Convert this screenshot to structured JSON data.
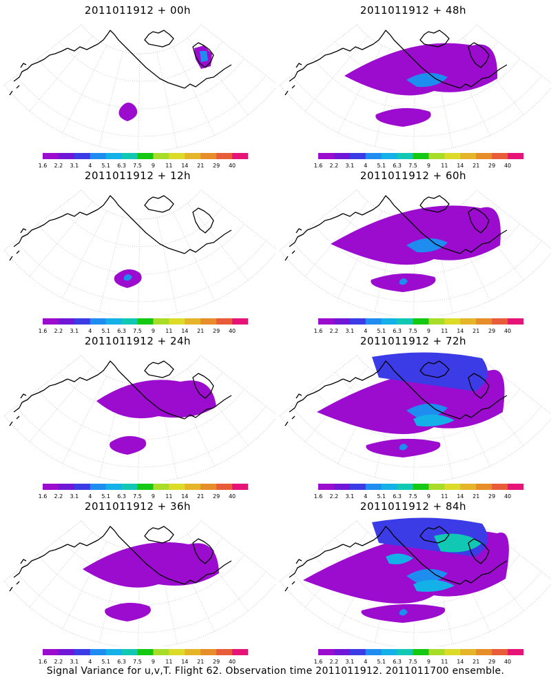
{
  "panels": [
    {
      "title": "2011011912 + 00h",
      "level": 0
    },
    {
      "title": "2011011912 + 48h",
      "level": 4
    },
    {
      "title": "2011011912 + 12h",
      "level": 1
    },
    {
      "title": "2011011912 + 60h",
      "level": 5
    },
    {
      "title": "2011011912 + 24h",
      "level": 2
    },
    {
      "title": "2011011912 + 72h",
      "level": 6
    },
    {
      "title": "2011011912 + 36h",
      "level": 3
    },
    {
      "title": "2011011912 + 84h",
      "level": 7
    }
  ],
  "colorbar": {
    "labels": [
      "1.6",
      "2.2",
      "3.1",
      "4",
      "5.1",
      "6.3",
      "7.5",
      "9",
      "11",
      "14",
      "21",
      "29",
      "40"
    ],
    "colors": [
      "#9b0ccf",
      "#7016d6",
      "#3c3ce6",
      "#1f8cf0",
      "#14b0e8",
      "#10c8b4",
      "#14c814",
      "#a8dc28",
      "#dcdc28",
      "#e6b428",
      "#e68c28",
      "#e85c3a",
      "#e61478"
    ]
  },
  "footer": {
    "caption": "Signal Variance for u,v,T. Flight 62. Observation time 2011011912. 2011011700 ensemble."
  }
}
